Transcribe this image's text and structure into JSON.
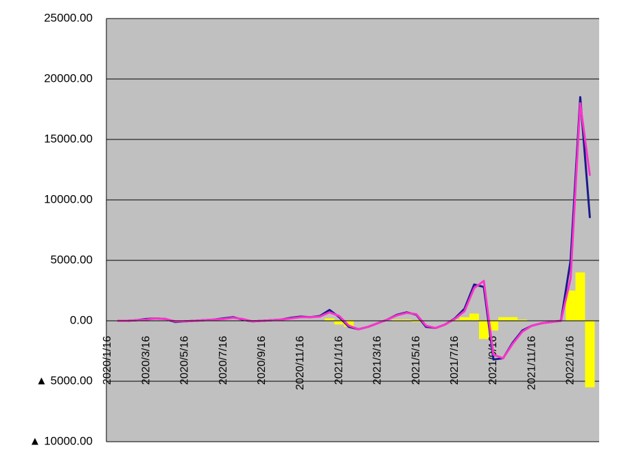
{
  "chart_data": {
    "type": "line",
    "categories": [
      "2020/1/16",
      null,
      null,
      null,
      "2020/3/16",
      null,
      null,
      null,
      "2020/5/16",
      null,
      null,
      null,
      "2020/7/16",
      null,
      null,
      null,
      "2020/9/16",
      null,
      null,
      null,
      "2020/11/16",
      null,
      null,
      null,
      "2021/1/16",
      null,
      null,
      null,
      "2021/3/16",
      null,
      null,
      null,
      "2021/5/16",
      null,
      null,
      null,
      "2021/7/16",
      null,
      null,
      null,
      "2021/9/16",
      null,
      null,
      null,
      "2021/11/16",
      null,
      null,
      null,
      "2022/1/16",
      null,
      null
    ],
    "series": [
      {
        "color": "#ffff00",
        "kind": "bar",
        "values": [
          null,
          0,
          0,
          0,
          0,
          0,
          0,
          0,
          0,
          0,
          0,
          0,
          0,
          0,
          0,
          0,
          0,
          0,
          0,
          0,
          0,
          0,
          0,
          200,
          -300,
          -500,
          0,
          0,
          0,
          0,
          100,
          100,
          -100,
          0,
          0,
          0,
          100,
          300,
          600,
          -1500,
          -800,
          300,
          300,
          100,
          0,
          0,
          0,
          0,
          2500,
          4000,
          -5500
        ]
      },
      {
        "color": "#1a1a8c",
        "kind": "line",
        "values": [
          null,
          0,
          0,
          50,
          150,
          200,
          150,
          -100,
          -50,
          0,
          50,
          100,
          200,
          300,
          100,
          -50,
          0,
          50,
          100,
          250,
          350,
          300,
          400,
          900,
          300,
          -500,
          -700,
          -500,
          -200,
          100,
          500,
          700,
          500,
          -500,
          -600,
          -300,
          200,
          1000,
          3000,
          2800,
          -3200,
          -3100,
          -1800,
          -800,
          -400,
          -200,
          -100,
          0,
          5000,
          18500,
          8500
        ]
      },
      {
        "color": "#ff33cc",
        "kind": "line",
        "values": [
          null,
          0,
          0,
          50,
          100,
          200,
          150,
          -50,
          -50,
          0,
          50,
          100,
          150,
          250,
          150,
          -50,
          0,
          50,
          100,
          200,
          300,
          300,
          350,
          700,
          400,
          -400,
          -700,
          -500,
          -200,
          100,
          450,
          650,
          550,
          -400,
          -600,
          -300,
          150,
          800,
          2700,
          3300,
          -2800,
          -3100,
          -1900,
          -900,
          -400,
          -200,
          -100,
          0,
          3500,
          18000,
          12000
        ]
      }
    ],
    "ylim": [
      -10000,
      25000
    ],
    "yticks": [
      {
        "value": -10000,
        "label": "▲ 10000.00"
      },
      {
        "value": -5000,
        "label": "▲ 5000.00"
      },
      {
        "value": 0,
        "label": "0.00"
      },
      {
        "value": 5000,
        "label": "5000.00"
      },
      {
        "value": 10000,
        "label": "10000.00"
      },
      {
        "value": 15000,
        "label": "15000.00"
      },
      {
        "value": 20000,
        "label": "20000.00"
      },
      {
        "value": 25000,
        "label": "25000.00"
      }
    ],
    "grid": true,
    "background": "#c0c0c0"
  }
}
